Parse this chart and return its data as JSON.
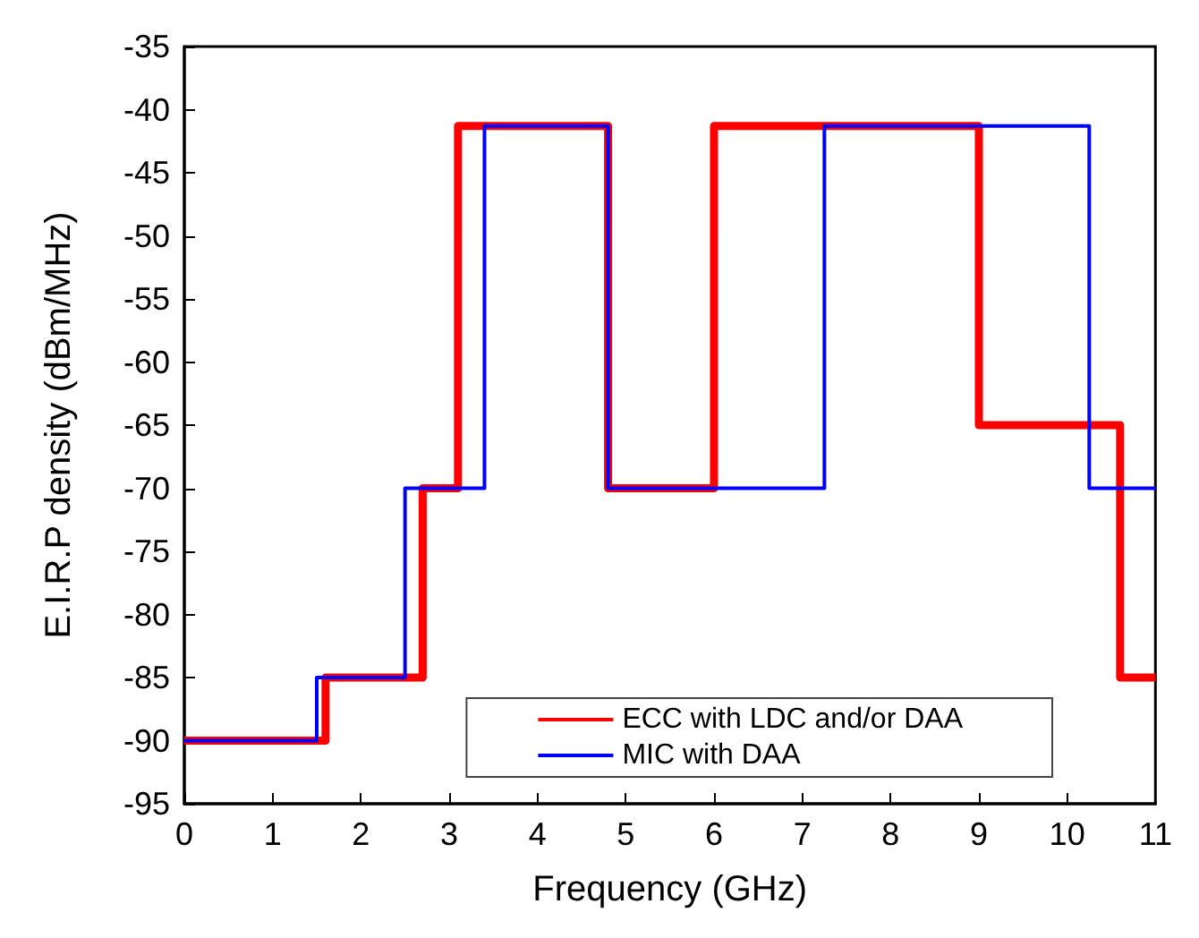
{
  "chart_data": {
    "type": "step",
    "xlabel": "Frequency (GHz)",
    "ylabel": "E.I.R.P density (dBm/MHz)",
    "xlim": [
      0,
      11
    ],
    "xticks": [
      0,
      1,
      2,
      3,
      4,
      5,
      6,
      7,
      8,
      9,
      10,
      11
    ],
    "ylim": [
      -95,
      -35
    ],
    "yticks": [
      -95,
      -90,
      -85,
      -80,
      -75,
      -70,
      -65,
      -60,
      -55,
      -50,
      -45,
      -40,
      -35
    ],
    "grid": false,
    "legend": "bottom right",
    "marker": "none",
    "line_style": "solid",
    "series": [
      {
        "name": "ECC with LDC and/or DAA",
        "color": "#ff0000",
        "x": [
          0,
          1.6,
          2.7,
          3.1,
          4.8,
          6,
          9,
          10.6,
          11
        ],
        "values": [
          -90,
          -85,
          -70,
          -41.3,
          -70,
          -41.3,
          -65,
          -85,
          -85
        ]
      },
      {
        "name": "MIC with DAA",
        "color": "#0000ff",
        "x": [
          0,
          1.5,
          2.5,
          3.4,
          4.8,
          7.25,
          10.25,
          11
        ],
        "values": [
          -90,
          -85,
          -70,
          -41.3,
          -70,
          -41.3,
          -70,
          -70
        ]
      }
    ]
  }
}
